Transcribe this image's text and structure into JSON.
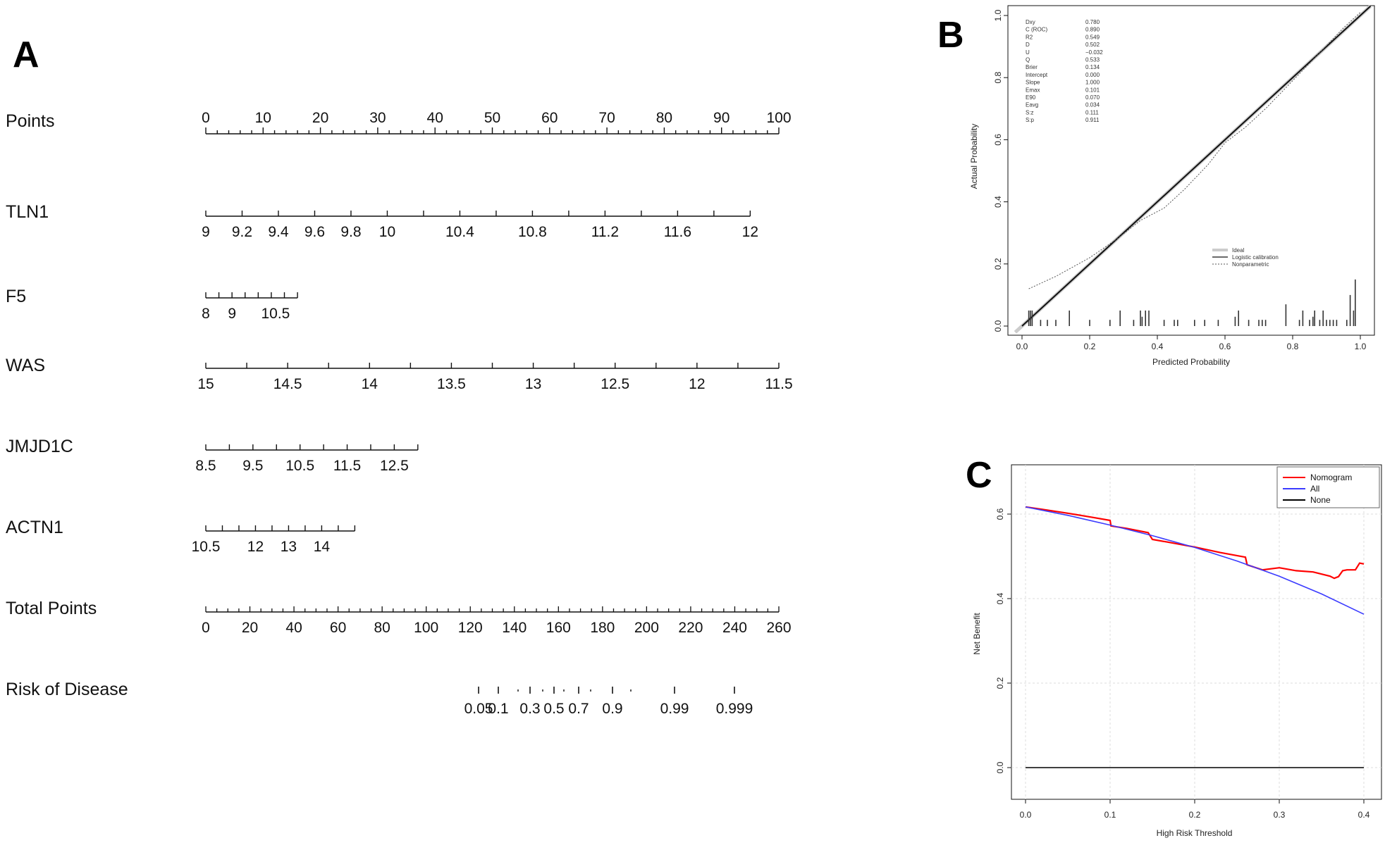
{
  "panels": {
    "a": "A",
    "b": "B",
    "c": "C"
  },
  "colors": {
    "axis": "#111111",
    "nomogram": "#ff0000",
    "all": "#3b3bff",
    "none": "#000000",
    "ideal": "#cccccc",
    "grid": "#dddddd"
  },
  "chart_data": [
    {
      "type": "nomogram",
      "panel": "A",
      "rows": [
        {
          "name": "Points",
          "ticks": [
            0,
            10,
            20,
            30,
            40,
            50,
            60,
            70,
            80,
            90,
            100
          ],
          "pmin": 0,
          "pmax": 100,
          "labelAbove": true
        },
        {
          "name": "TLN1",
          "ticks": [
            "9",
            "9.2",
            "9.4",
            "9.6",
            "9.8",
            "10",
            "10.4",
            "10.8",
            "11.2",
            "11.6",
            "12"
          ],
          "pmin": 0,
          "pmax": 95,
          "majorLabels": [
            "9",
            "9.2",
            "9.4",
            "9.6",
            "9.8",
            "10",
            "10.4",
            "10.8",
            "11.2",
            "11.6",
            "12"
          ]
        },
        {
          "name": "F5",
          "ticks": [
            "8",
            "9",
            "10.5"
          ],
          "pmin": 0,
          "pmax": 16
        },
        {
          "name": "WAS",
          "ticks": [
            "15",
            "14.5",
            "14",
            "13.5",
            "13",
            "12.5",
            "12",
            "11.5"
          ],
          "pmin": 0,
          "pmax": 100
        },
        {
          "name": "JMJD1C",
          "ticks": [
            "8.5",
            "9.5",
            "10.5",
            "11.5",
            "12.5"
          ],
          "pmin": 0,
          "pmax": 37
        },
        {
          "name": "ACTN1",
          "ticks": [
            "10.5",
            "12",
            "13",
            "14"
          ],
          "pmin": 0,
          "pmax": 26
        },
        {
          "name": "Total Points",
          "ticks": [
            0,
            20,
            40,
            60,
            80,
            100,
            120,
            140,
            160,
            180,
            200,
            220,
            240,
            260
          ],
          "pmin": 0,
          "pmax": 260
        },
        {
          "name": "Risk of Disease",
          "ticks": [
            "0.05",
            "0.1",
            "0.3",
            "0.5",
            "0.7",
            "0.9",
            "0.99",
            "0.999"
          ]
        }
      ]
    },
    {
      "type": "line",
      "panel": "B",
      "xlabel": "Predicted Probability",
      "ylabel": "Actual Probability",
      "xlim": [
        0,
        1
      ],
      "ylim": [
        0,
        1
      ],
      "xticks": [
        "0.0",
        "0.2",
        "0.4",
        "0.6",
        "0.8",
        "1.0"
      ],
      "yticks": [
        "0.0",
        "0.2",
        "0.4",
        "0.6",
        "0.8",
        "1.0"
      ],
      "stats": [
        [
          "Dxy",
          "0.780"
        ],
        [
          "C (ROC)",
          "0.890"
        ],
        [
          "R2",
          "0.549"
        ],
        [
          "D",
          "0.502"
        ],
        [
          "U",
          "−0.032"
        ],
        [
          "Q",
          "0.533"
        ],
        [
          "Brier",
          "0.134"
        ],
        [
          "Intercept",
          "0.000"
        ],
        [
          "Slope",
          "1.000"
        ],
        [
          "Emax",
          "0.101"
        ],
        [
          "E90",
          "0.070"
        ],
        [
          "Eavg",
          "0.034"
        ],
        [
          "S:z",
          "0.111"
        ],
        [
          "S:p",
          "0.911"
        ]
      ],
      "legend": [
        "Ideal",
        "Logistic calibration",
        "Nonparametric"
      ],
      "series": [
        {
          "name": "Ideal",
          "x": [
            0,
            1
          ],
          "y": [
            0,
            1
          ]
        },
        {
          "name": "Logistic calibration",
          "x": [
            0,
            1
          ],
          "y": [
            0,
            1
          ]
        },
        {
          "name": "Nonparametric",
          "x": [
            0.02,
            0.1,
            0.2,
            0.28,
            0.35,
            0.42,
            0.48,
            0.55,
            0.6,
            0.66,
            0.72,
            0.8,
            0.88,
            0.95,
            1.0
          ],
          "y": [
            0.12,
            0.16,
            0.22,
            0.28,
            0.34,
            0.38,
            0.44,
            0.52,
            0.59,
            0.64,
            0.7,
            0.79,
            0.88,
            0.96,
            1.01
          ]
        }
      ],
      "rug": [
        0.02,
        0.025,
        0.03,
        0.055,
        0.075,
        0.1,
        0.14,
        0.2,
        0.26,
        0.29,
        0.33,
        0.35,
        0.355,
        0.365,
        0.375,
        0.42,
        0.45,
        0.46,
        0.51,
        0.54,
        0.58,
        0.63,
        0.64,
        0.67,
        0.7,
        0.71,
        0.72,
        0.78,
        0.82,
        0.83,
        0.85,
        0.86,
        0.865,
        0.88,
        0.89,
        0.9,
        0.91,
        0.92,
        0.93,
        0.96,
        0.97,
        0.98,
        0.985
      ],
      "rugHeights": [
        0.05,
        0.05,
        0.05,
        0.02,
        0.02,
        0.02,
        0.05,
        0.02,
        0.02,
        0.05,
        0.02,
        0.05,
        0.03,
        0.05,
        0.05,
        0.02,
        0.02,
        0.02,
        0.02,
        0.02,
        0.02,
        0.03,
        0.05,
        0.02,
        0.02,
        0.02,
        0.02,
        0.07,
        0.02,
        0.05,
        0.02,
        0.03,
        0.05,
        0.02,
        0.05,
        0.02,
        0.02,
        0.02,
        0.02,
        0.02,
        0.1,
        0.05,
        0.15
      ]
    },
    {
      "type": "line",
      "panel": "C",
      "xlabel": "High Risk Threshold",
      "ylabel": "Net Benefit",
      "xlim": [
        0,
        0.4
      ],
      "ylim": [
        0,
        0.6
      ],
      "xticks": [
        "0.0",
        "0.1",
        "0.2",
        "0.3",
        "0.4"
      ],
      "yticks": [
        "0.0",
        "0.2",
        "0.4",
        "0.6"
      ],
      "legend": [
        "Nomogram",
        "All",
        "None"
      ],
      "series": [
        {
          "name": "Nomogram",
          "x": [
            0,
            0.02,
            0.05,
            0.08,
            0.1,
            0.101,
            0.12,
            0.145,
            0.15,
            0.17,
            0.2,
            0.23,
            0.26,
            0.262,
            0.28,
            0.3,
            0.32,
            0.34,
            0.35,
            0.36,
            0.365,
            0.37,
            0.375,
            0.38,
            0.39,
            0.395,
            0.4
          ],
          "y": [
            0.617,
            0.611,
            0.602,
            0.592,
            0.585,
            0.572,
            0.566,
            0.556,
            0.54,
            0.533,
            0.522,
            0.509,
            0.498,
            0.48,
            0.468,
            0.473,
            0.466,
            0.463,
            0.458,
            0.453,
            0.448,
            0.452,
            0.466,
            0.468,
            0.468,
            0.484,
            0.482
          ]
        },
        {
          "name": "All",
          "x": [
            0,
            0.05,
            0.1,
            0.15,
            0.2,
            0.25,
            0.3,
            0.35,
            0.4
          ],
          "y": [
            0.617,
            0.597,
            0.574,
            0.549,
            0.521,
            0.489,
            0.453,
            0.411,
            0.363
          ]
        },
        {
          "name": "None",
          "x": [
            0,
            0.4
          ],
          "y": [
            0,
            0
          ]
        }
      ]
    }
  ]
}
